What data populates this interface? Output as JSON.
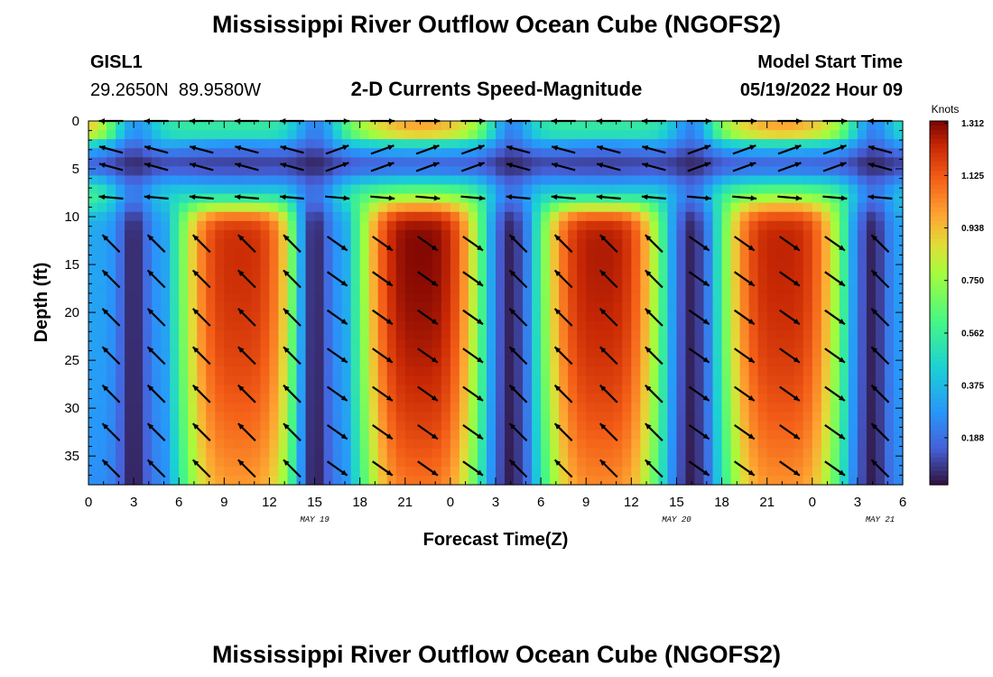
{
  "header": {
    "title": "Mississippi River Outflow Ocean Cube (NGOFS2)",
    "station_name": "GISL1",
    "station_coords": "29.2650N  89.9580W",
    "subtitle": "2-D Currents Speed-Magnitude",
    "model_start_label": "Model Start Time",
    "model_start_value": "05/19/2022 Hour 09"
  },
  "footer": {
    "title": "Mississippi River Outflow Ocean Cube (NGOFS2)"
  },
  "chart_data": {
    "type": "heatmap",
    "title": "2-D Currents Speed-Magnitude",
    "xlabel": "Forecast Time(Z)",
    "ylabel": "Depth (ft)",
    "x_tick_labels": [
      "0",
      "3",
      "6",
      "9",
      "12",
      "15",
      "18",
      "21",
      "0",
      "3",
      "6",
      "9",
      "12",
      "15",
      "18",
      "21",
      "0",
      "3",
      "6"
    ],
    "x_date_labels": [
      {
        "label": "MAY 19",
        "tick_index": 5
      },
      {
        "label": "MAY 20",
        "tick_index": 13
      },
      {
        "label": "MAY 21",
        "tick_index": 17.5
      }
    ],
    "y_tick_labels": [
      "0",
      "5",
      "10",
      "15",
      "20",
      "25",
      "30",
      "35"
    ],
    "y_ticks": [
      0,
      5,
      10,
      15,
      20,
      25,
      30,
      35
    ],
    "ylim": [
      0,
      38
    ],
    "y_inverted": true,
    "x_range_hours": [
      0,
      54
    ],
    "colorbar": {
      "title": "Knots",
      "tick_labels": [
        "1.312",
        "1.125",
        "0.938",
        "0.750",
        "0.562",
        "0.375",
        "0.188"
      ],
      "ticks": [
        1.312,
        1.125,
        0.938,
        0.75,
        0.562,
        0.375,
        0.188
      ],
      "range": [
        0.02,
        1.32
      ],
      "colormap": "turbo"
    },
    "speed_peaks_knots": [
      {
        "center_hour": 10,
        "half_width_hours": 4.5,
        "peak": 1.22
      },
      {
        "center_hour": 22,
        "half_width_hours": 4.5,
        "peak": 1.31
      },
      {
        "center_hour": 34,
        "half_width_hours": 4.5,
        "peak": 1.26
      },
      {
        "center_hour": 46,
        "half_width_hours": 4.5,
        "peak": 1.24
      }
    ],
    "slack_hours": [
      3,
      15,
      28,
      40,
      52
    ],
    "flood_windows_hours": [
      [
        15.5,
        27.5
      ],
      [
        39.5,
        51.5
      ]
    ],
    "surface_layer_depth_ft": 9,
    "grid": false
  }
}
